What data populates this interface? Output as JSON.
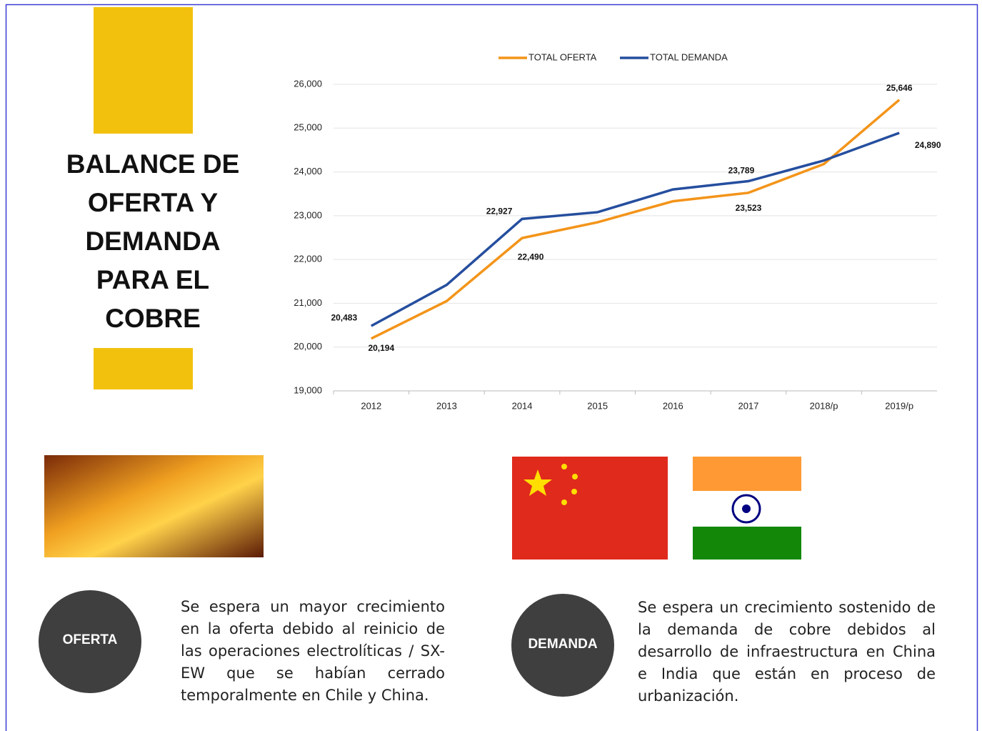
{
  "title_lines": [
    "BALANCE DE",
    "OFERTA Y",
    "DEMANDA",
    "PARA EL",
    "COBRE"
  ],
  "chart_data": {
    "type": "line",
    "categories": [
      "2012",
      "2013",
      "2014",
      "2015",
      "2016",
      "2017",
      "2018/p",
      "2019/p"
    ],
    "series": [
      {
        "name": "TOTAL OFERTA",
        "color": "#f39419",
        "values": [
          20194,
          21050,
          22490,
          22850,
          23330,
          23523,
          24180,
          25646
        ],
        "value_labels": [
          "20,194",
          null,
          "22,490",
          null,
          null,
          "23,523",
          null,
          "25,646"
        ]
      },
      {
        "name": "TOTAL DEMANDA",
        "color": "#254e9e",
        "values": [
          20483,
          21420,
          22927,
          23080,
          23600,
          23789,
          24260,
          24890
        ],
        "value_labels": [
          "20,483",
          null,
          "22,927",
          null,
          null,
          "23,789",
          null,
          "24,890"
        ]
      }
    ],
    "ylim": [
      19000,
      26000
    ],
    "yticks": [
      {
        "value": 19000,
        "label": "19,000"
      },
      {
        "value": 20000,
        "label": "20,000"
      },
      {
        "value": 21000,
        "label": "21,000"
      },
      {
        "value": 22000,
        "label": "22,000"
      },
      {
        "value": 23000,
        "label": "23,000"
      },
      {
        "value": 24000,
        "label": "24,000"
      },
      {
        "value": 25000,
        "label": "25,000"
      },
      {
        "value": 26000,
        "label": "26,000"
      }
    ],
    "grid": true,
    "legend": "top"
  },
  "supply": {
    "badge": "OFERTA",
    "text": "Se espera un mayor crecimiento en la oferta debido al reinicio de las operaciones electrolíticas / SX-EW que se habían cerrado temporalmente en Chile y China."
  },
  "demand": {
    "badge": "DEMANDA",
    "text": "Se espera un crecimiento sostenido de la demanda de cobre debidos al desarrollo de infraestructura en China e India que están en proceso de urbanización."
  }
}
